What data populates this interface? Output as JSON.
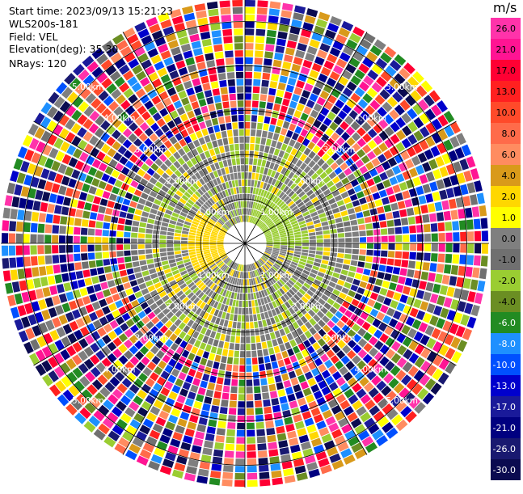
{
  "info": {
    "start_time": "Start time: 2023/09/13 15:21:23",
    "instrument": "WLS200s-181",
    "field": "Field: VEL",
    "elevation": "Elevation(deg): 35.30",
    "nrays": "NRays: 120"
  },
  "colorbar": {
    "unit": "m/s",
    "ticks": [
      "26.0",
      "21.0",
      "17.0",
      "13.0",
      "10.0",
      "8.0",
      "6.0",
      "4.0",
      "2.0",
      "1.0",
      "0.0",
      "-1.0",
      "-2.0",
      "-4.0",
      "-6.0",
      "-8.0",
      "-10.0",
      "-13.0",
      "-17.0",
      "-21.0",
      "-26.0",
      "-30.0"
    ],
    "colors": [
      "#ff33aa",
      "#ff1493",
      "#ff0033",
      "#ff2020",
      "#ff4a2a",
      "#ff6b4a",
      "#ff8c60",
      "#d99a1a",
      "#ffd700",
      "#ffff00",
      "#7f7f7f",
      "#707070",
      "#9acd32",
      "#6b8e23",
      "#228b22",
      "#1e90ff",
      "#0050ff",
      "#0000cd",
      "#1a1a9a",
      "#000080",
      "#191970",
      "#0b0b50"
    ]
  },
  "chart_data": {
    "type": "polar-ppi",
    "title": "",
    "field": "VEL",
    "units": "m/s",
    "elevation_deg": 35.3,
    "nrays": 120,
    "range_rings_km": [
      1.0,
      2.0,
      3.0,
      4.0,
      5.0
    ],
    "range_ring_labels": [
      "1.00km",
      "2.00km",
      "3.00km",
      "4.00km",
      "5.00km"
    ],
    "color_scale": [
      -30.0,
      -26.0,
      -21.0,
      -17.0,
      -13.0,
      -10.0,
      -8.0,
      -6.0,
      -4.0,
      -2.0,
      -1.0,
      0.0,
      1.0,
      2.0,
      4.0,
      6.0,
      8.0,
      10.0,
      13.0,
      17.0,
      21.0,
      26.0
    ],
    "inner_region": "low velocities (-2.0 to 2.0 m/s) within about 2.5 km",
    "outer_region": "noisy velocities spanning full scale beyond about 2.5 km"
  }
}
